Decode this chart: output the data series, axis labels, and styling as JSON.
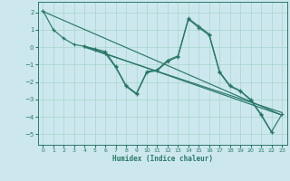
{
  "xlabel": "Humidex (Indice chaleur)",
  "bg_color": "#cce8ee",
  "grid_color": "#a8d4cc",
  "line_color": "#2a7868",
  "xlim": [
    -0.5,
    23.5
  ],
  "ylim": [
    -5.6,
    2.6
  ],
  "xticks": [
    0,
    1,
    2,
    3,
    4,
    5,
    6,
    7,
    8,
    9,
    10,
    11,
    12,
    13,
    14,
    15,
    16,
    17,
    18,
    19,
    20,
    21,
    22,
    23
  ],
  "yticks": [
    -5,
    -4,
    -3,
    -2,
    -1,
    0,
    1,
    2
  ],
  "line1_x": [
    0,
    1,
    2,
    3,
    4,
    5,
    6,
    7,
    8,
    9,
    10,
    11,
    12,
    13,
    14,
    15,
    16,
    17,
    18,
    19,
    20,
    21,
    22,
    23
  ],
  "line1_y": [
    2.1,
    1.0,
    0.5,
    0.15,
    0.05,
    -0.1,
    -0.25,
    -1.1,
    -2.2,
    -2.65,
    -1.4,
    -1.3,
    -0.75,
    -0.5,
    1.65,
    1.2,
    0.75,
    -1.4,
    -2.2,
    -2.5,
    -3.0,
    -3.85,
    -4.85,
    -3.85
  ],
  "line2_x": [
    4,
    5,
    6,
    7,
    8,
    9,
    10,
    11,
    12,
    13,
    14,
    15,
    16,
    17,
    18,
    19,
    20,
    21,
    22
  ],
  "line2_y": [
    0.05,
    -0.15,
    -0.35,
    -1.15,
    -2.25,
    -2.7,
    -1.45,
    -1.35,
    -0.82,
    -0.55,
    1.6,
    1.12,
    0.68,
    -1.45,
    -2.25,
    -2.52,
    -3.05,
    -3.9,
    -4.88
  ],
  "trend1_x": [
    0,
    23
  ],
  "trend1_y": [
    2.05,
    -3.9
  ],
  "trend2_x": [
    4,
    23
  ],
  "trend2_y": [
    0.05,
    -3.9
  ],
  "trend3_x": [
    4,
    23
  ],
  "trend3_y": [
    0.0,
    -3.75
  ]
}
